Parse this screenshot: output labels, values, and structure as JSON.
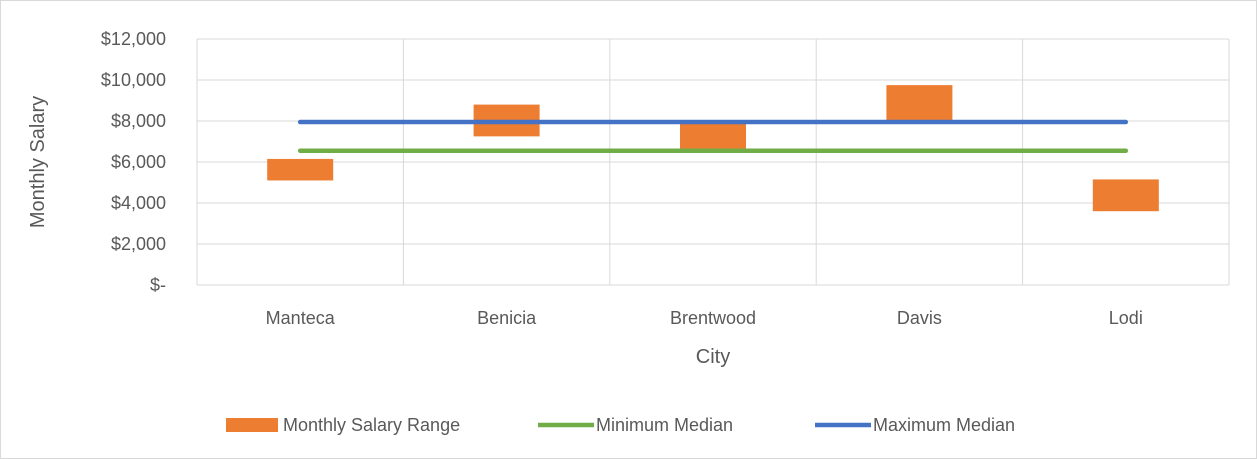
{
  "chart_data": {
    "type": "bar",
    "title": "",
    "xlabel": "City",
    "ylabel": "Monthly Salary",
    "categories": [
      "Manteca",
      "Benicia",
      "Brentwood",
      "Davis",
      "Lodi"
    ],
    "ylim": [
      0,
      12000
    ],
    "y_ticks": [
      {
        "value": 0,
        "label": "$-"
      },
      {
        "value": 2000,
        "label": "$2,000"
      },
      {
        "value": 4000,
        "label": "$4,000"
      },
      {
        "value": 6000,
        "label": "$6,000"
      },
      {
        "value": 8000,
        "label": "$8,000"
      },
      {
        "value": 10000,
        "label": "$10,000"
      },
      {
        "value": 12000,
        "label": "$12,000"
      }
    ],
    "grid": true,
    "legend_position": "bottom",
    "series": [
      {
        "name": "Monthly Salary Range",
        "kind": "floating-bar",
        "color": "#ed7d31",
        "ranges": [
          [
            5100,
            6150
          ],
          [
            7250,
            8800
          ],
          [
            6550,
            7900
          ],
          [
            8050,
            9750
          ],
          [
            3600,
            5150
          ]
        ]
      },
      {
        "name": "Minimum Median",
        "kind": "line",
        "color": "#70ad47",
        "values": [
          6550,
          6550,
          6550,
          6550,
          6550
        ]
      },
      {
        "name": "Maximum Median",
        "kind": "line",
        "color": "#4472c4",
        "values": [
          7950,
          7950,
          7950,
          7950,
          7950
        ]
      }
    ]
  }
}
